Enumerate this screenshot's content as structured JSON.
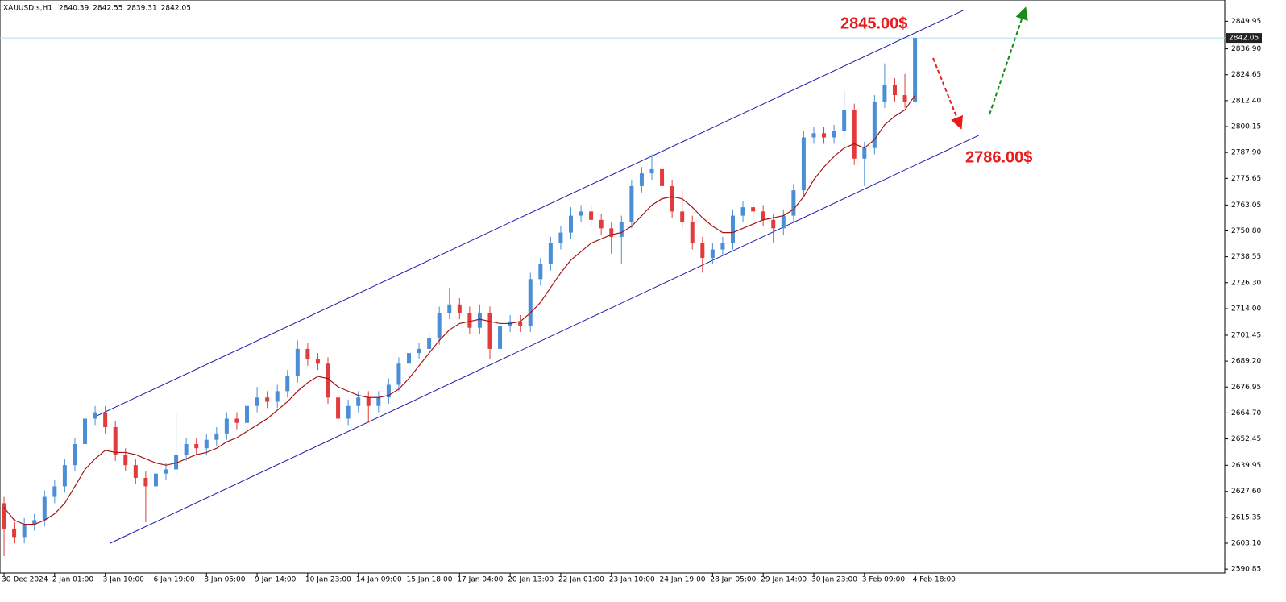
{
  "chart_data": {
    "type": "candlestick",
    "title": "XAUUSD.s,H1",
    "info": [
      2840.39,
      2842.55,
      2839.31,
      2842.05
    ],
    "up_color": "#4a8fd6",
    "down_color": "#e23b3b",
    "open": [
      2622,
      2610,
      2606,
      2612,
      2614,
      2625,
      2630,
      2640,
      2650,
      2662,
      2665,
      2658,
      2645,
      2640,
      2634,
      2630,
      2636,
      2638,
      2645,
      2650,
      2648,
      2652,
      2655,
      2662,
      2660,
      2668,
      2672,
      2670,
      2675,
      2682,
      2695,
      2690,
      2688,
      2672,
      2662,
      2668,
      2672,
      2668,
      2672,
      2678,
      2688,
      2693,
      2695,
      2700,
      2712,
      2716,
      2712,
      2705,
      2712,
      2695,
      2706,
      2708,
      2706,
      2728,
      2735,
      2745,
      2750,
      2758,
      2760,
      2756,
      2752,
      2748,
      2755,
      2772,
      2778,
      2780,
      2772,
      2760,
      2755,
      2745,
      2738,
      2742,
      2745,
      2758,
      2762,
      2760,
      2756,
      2752,
      2758,
      2770,
      2795,
      2797,
      2795,
      2798,
      2808,
      2785,
      2790,
      2812,
      2820,
      2815,
      2812
    ],
    "high": [
      2625,
      2613,
      2615,
      2617,
      2628,
      2633,
      2643,
      2653,
      2665,
      2668,
      2668,
      2661,
      2648,
      2643,
      2637,
      2639,
      2641,
      2665,
      2653,
      2653,
      2655,
      2658,
      2665,
      2665,
      2671,
      2677,
      2675,
      2678,
      2685,
      2699,
      2698,
      2693,
      2691,
      2675,
      2671,
      2675,
      2675,
      2675,
      2681,
      2691,
      2696,
      2698,
      2703,
      2715,
      2724,
      2719,
      2715,
      2716,
      2715,
      2709,
      2711,
      2711,
      2731,
      2738,
      2748,
      2753,
      2762,
      2763,
      2763,
      2759,
      2755,
      2758,
      2775,
      2781,
      2787,
      2783,
      2775,
      2770,
      2758,
      2748,
      2745,
      2748,
      2761,
      2765,
      2765,
      2763,
      2759,
      2761,
      2773,
      2798,
      2800,
      2800,
      2801,
      2817,
      2811,
      2793,
      2815,
      2830,
      2823,
      2825,
      2845
    ],
    "low": [
      2597,
      2603,
      2603,
      2609,
      2611,
      2622,
      2627,
      2637,
      2647,
      2659,
      2655,
      2642,
      2637,
      2631,
      2613,
      2627,
      2633,
      2635,
      2642,
      2645,
      2645,
      2649,
      2652,
      2657,
      2657,
      2665,
      2667,
      2667,
      2672,
      2679,
      2687,
      2685,
      2669,
      2658,
      2659,
      2665,
      2660,
      2665,
      2669,
      2675,
      2685,
      2690,
      2692,
      2697,
      2709,
      2709,
      2702,
      2702,
      2690,
      2692,
      2703,
      2703,
      2703,
      2725,
      2732,
      2742,
      2747,
      2755,
      2753,
      2749,
      2740,
      2735,
      2752,
      2769,
      2775,
      2769,
      2757,
      2752,
      2742,
      2731,
      2735,
      2739,
      2742,
      2755,
      2757,
      2753,
      2745,
      2749,
      2755,
      2767,
      2792,
      2792,
      2792,
      2795,
      2782,
      2772,
      2787,
      2809,
      2812,
      2809,
      2809
    ],
    "close": [
      2610,
      2606,
      2612,
      2614,
      2625,
      2630,
      2640,
      2650,
      2662,
      2665,
      2658,
      2645,
      2640,
      2634,
      2630,
      2636,
      2638,
      2645,
      2650,
      2648,
      2652,
      2655,
      2662,
      2660,
      2668,
      2672,
      2670,
      2675,
      2682,
      2695,
      2690,
      2688,
      2672,
      2662,
      2668,
      2672,
      2668,
      2672,
      2678,
      2688,
      2693,
      2695,
      2700,
      2712,
      2716,
      2712,
      2705,
      2712,
      2695,
      2706,
      2708,
      2706,
      2728,
      2735,
      2745,
      2750,
      2758,
      2760,
      2756,
      2752,
      2748,
      2755,
      2772,
      2778,
      2780,
      2772,
      2760,
      2755,
      2745,
      2738,
      2742,
      2745,
      2758,
      2762,
      2760,
      2756,
      2752,
      2758,
      2770,
      2795,
      2797,
      2795,
      2798,
      2808,
      2785,
      2790,
      2812,
      2820,
      2815,
      2812,
      2842.05
    ],
    "moving_average": {
      "color": "#a31515",
      "values": [
        2620,
        2614,
        2612,
        2612,
        2614,
        2617,
        2622,
        2630,
        2638,
        2643,
        2647,
        2646,
        2646,
        2645,
        2643,
        2641,
        2640,
        2641,
        2643,
        2645,
        2646,
        2648,
        2651,
        2653,
        2656,
        2659,
        2662,
        2666,
        2670,
        2675,
        2679,
        2682,
        2681,
        2677,
        2675,
        2673,
        2672,
        2672,
        2673,
        2676,
        2681,
        2687,
        2693,
        2699,
        2704,
        2707,
        2708,
        2709,
        2708,
        2707,
        2707,
        2708,
        2712,
        2717,
        2724,
        2731,
        2737,
        2741,
        2745,
        2747,
        2749,
        2750,
        2753,
        2758,
        2763,
        2766,
        2767,
        2766,
        2762,
        2757,
        2753,
        2750,
        2750,
        2752,
        2754,
        2756,
        2757,
        2758,
        2761,
        2767,
        2775,
        2781,
        2786,
        2790,
        2792,
        2790,
        2794,
        2801,
        2805,
        2808,
        2815
      ]
    },
    "channel": {
      "color": "#1c1ca8",
      "lines": [
        {
          "x": [
            9.15,
            94.9
          ],
          "y": [
            2663.3,
            2855.4
          ]
        },
        {
          "x": [
            10.5,
            96.3
          ],
          "y": [
            2603.1,
            2796.0
          ]
        }
      ]
    },
    "last_price": 2842.05,
    "annotations": [
      "2845.00$",
      "2786.00$"
    ],
    "xlim": [
      -0.4,
      120.6
    ],
    "ylim": [
      2589,
      2860
    ],
    "xticks": [
      {
        "value": 0,
        "label": "30 Dec 2024"
      },
      {
        "value": 5,
        "label": "2 Jan 01:00"
      },
      {
        "value": 10,
        "label": "3 Jan 10:00"
      },
      {
        "value": 15,
        "label": "6 Jan 19:00"
      },
      {
        "value": 20,
        "label": "8 Jan 05:00"
      },
      {
        "value": 25,
        "label": "9 Jan 14:00"
      },
      {
        "value": 30,
        "label": "10 Jan 23:00"
      },
      {
        "value": 35,
        "label": "14 Jan 09:00"
      },
      {
        "value": 40,
        "label": "15 Jan 18:00"
      },
      {
        "value": 45,
        "label": "17 Jan 04:00"
      },
      {
        "value": 50,
        "label": "20 Jan 13:00"
      },
      {
        "value": 55,
        "label": "22 Jan 01:00"
      },
      {
        "value": 60,
        "label": "23 Jan 10:00"
      },
      {
        "value": 65,
        "label": "24 Jan 19:00"
      },
      {
        "value": 70,
        "label": "28 Jan 05:00"
      },
      {
        "value": 75,
        "label": "29 Jan 14:00"
      },
      {
        "value": 80,
        "label": "30 Jan 23:00"
      },
      {
        "value": 85,
        "label": "3 Feb 09:00"
      },
      {
        "value": 90,
        "label": "4 Feb 18:00"
      }
    ],
    "yticks": [
      2849.95,
      {
        "value": 2836.9,
        "label": "2836.90"
      },
      2824.65,
      {
        "value": 2812.4,
        "label": "2812.40"
      },
      2800.15,
      {
        "value": 2787.9,
        "label": "2787.90"
      },
      2775.65,
      2763.05,
      {
        "value": 2750.8,
        "label": "2750.80"
      },
      2738.55,
      {
        "value": 2726.3,
        "label": "2726.30"
      },
      {
        "value": 2714,
        "label": "2714.00"
      },
      2701.45,
      {
        "value": 2689.2,
        "label": "2689.20"
      },
      2676.95,
      {
        "value": 2664.7,
        "label": "2664.70"
      },
      2652.45,
      2639.95,
      {
        "value": 2627.6,
        "label": "2627.60"
      },
      2615.35,
      {
        "value": 2603.1,
        "label": "2603.10"
      },
      2590.85
    ]
  }
}
